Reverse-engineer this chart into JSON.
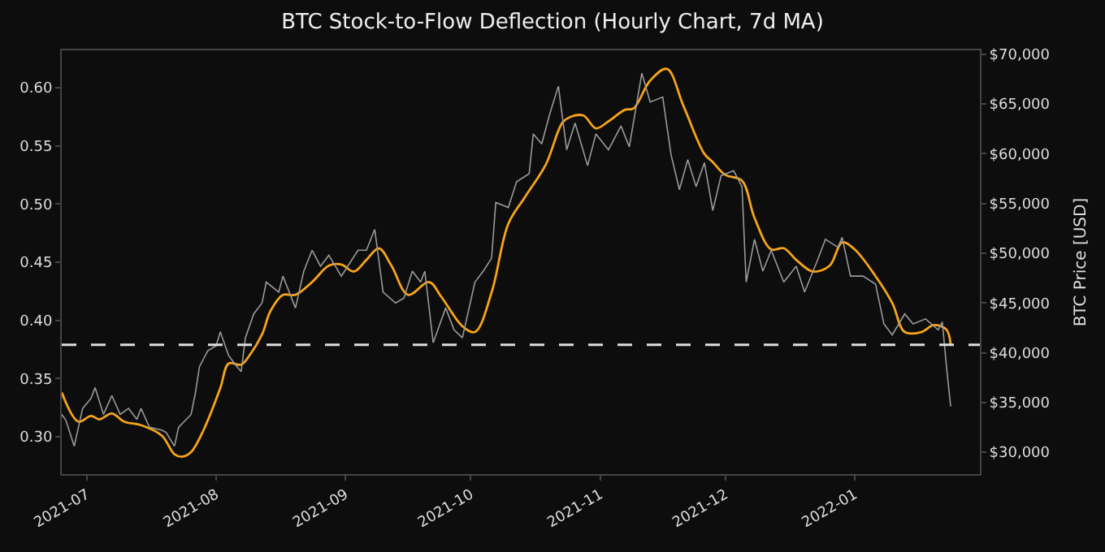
{
  "chart_data": {
    "type": "line",
    "title": "BTC Stock-to-Flow Deflection (Hourly Chart, 7d MA)",
    "y2label": "BTC Price [USD]",
    "xlim": [
      "2021-06-25",
      "2022-01-31"
    ],
    "xticks": [
      "2021-07",
      "2021-08",
      "2021-09",
      "2021-10",
      "2021-11",
      "2021-12",
      "2022-01"
    ],
    "ylim": [
      0.268,
      0.632
    ],
    "yticks": [
      {
        "value": 0.3,
        "label": "0.30"
      },
      0.35,
      {
        "value": 0.4,
        "label": "0.40"
      },
      0.45,
      {
        "value": 0.5,
        "label": "0.50"
      },
      0.55,
      {
        "value": 0.6,
        "label": "0.60"
      }
    ],
    "y2lim": [
      27800,
      70400
    ],
    "y2ticks": [
      {
        "value": 30000,
        "label": "$30,000"
      },
      {
        "value": 35000,
        "label": "$35,000"
      },
      {
        "value": 40000,
        "label": "$40,000"
      },
      {
        "value": 45000,
        "label": "$45,000"
      },
      {
        "value": 50000,
        "label": "$50,000"
      },
      {
        "value": 55000,
        "label": "$55,000"
      },
      {
        "value": 60000,
        "label": "$60,000"
      },
      {
        "value": 65000,
        "label": "$65,000"
      },
      {
        "value": 70000,
        "label": "$70,000"
      }
    ],
    "ref_lines": [
      {
        "axis": "y",
        "value": 0.379,
        "color": "#dddddd",
        "line_style": "dashed"
      }
    ],
    "series": [
      {
        "color": "#9a9a9a",
        "axis": "y2",
        "x": [
          "2021-06-25",
          "2021-06-26",
          "2021-06-28",
          "2021-06-30",
          "2021-07-02",
          "2021-07-03",
          "2021-07-05",
          "2021-07-07",
          "2021-07-09",
          "2021-07-11",
          "2021-07-13",
          "2021-07-14",
          "2021-07-16",
          "2021-07-19",
          "2021-07-20",
          "2021-07-22",
          "2021-07-23",
          "2021-07-26",
          "2021-07-27",
          "2021-07-28",
          "2021-07-30",
          "2021-08-01",
          "2021-08-02",
          "2021-08-04",
          "2021-08-06",
          "2021-08-07",
          "2021-08-08",
          "2021-08-10",
          "2021-08-12",
          "2021-08-13",
          "2021-08-16",
          "2021-08-17",
          "2021-08-20",
          "2021-08-22",
          "2021-08-24",
          "2021-08-26",
          "2021-08-28",
          "2021-08-31",
          "2021-09-02",
          "2021-09-04",
          "2021-09-06",
          "2021-09-08",
          "2021-09-10",
          "2021-09-13",
          "2021-09-15",
          "2021-09-17",
          "2021-09-19",
          "2021-09-20",
          "2021-09-22",
          "2021-09-25",
          "2021-09-27",
          "2021-09-29",
          "2021-10-02",
          "2021-10-04",
          "2021-10-06",
          "2021-10-07",
          "2021-10-10",
          "2021-10-12",
          "2021-10-15",
          "2021-10-16",
          "2021-10-18",
          "2021-10-20",
          "2021-10-22",
          "2021-10-24",
          "2021-10-26",
          "2021-10-29",
          "2021-10-31",
          "2021-11-03",
          "2021-11-06",
          "2021-11-08",
          "2021-11-11",
          "2021-11-13",
          "2021-11-16",
          "2021-11-18",
          "2021-11-20",
          "2021-11-22",
          "2021-11-24",
          "2021-11-26",
          "2021-11-28",
          "2021-11-30",
          "2021-12-03",
          "2021-12-05",
          "2021-12-06",
          "2021-12-08",
          "2021-12-10",
          "2021-12-12",
          "2021-12-15",
          "2021-12-18",
          "2021-12-20",
          "2021-12-23",
          "2021-12-25",
          "2021-12-28",
          "2021-12-29",
          "2021-12-31",
          "2022-01-03",
          "2022-01-06",
          "2022-01-08",
          "2022-01-10",
          "2022-01-13",
          "2022-01-15",
          "2022-01-18",
          "2022-01-21",
          "2022-01-22",
          "2022-01-23",
          "2022-01-24"
        ],
        "values": [
          33800,
          33200,
          30600,
          34400,
          35400,
          36500,
          33800,
          35700,
          33800,
          34400,
          33300,
          34400,
          32500,
          32200,
          32000,
          30600,
          32500,
          33800,
          35900,
          38600,
          40200,
          40700,
          42100,
          39700,
          38600,
          38100,
          41500,
          43900,
          45000,
          47100,
          46100,
          47700,
          44500,
          48200,
          50300,
          48700,
          49800,
          47700,
          49000,
          50300,
          50300,
          52400,
          46100,
          45000,
          45500,
          48200,
          47100,
          48200,
          41000,
          44500,
          42300,
          41500,
          47100,
          48200,
          49500,
          55100,
          54600,
          57200,
          58000,
          62000,
          61000,
          64100,
          66800,
          60400,
          63100,
          58800,
          62000,
          60400,
          62800,
          60700,
          68100,
          65200,
          65700,
          59900,
          56400,
          59400,
          56700,
          59100,
          54300,
          57800,
          58300,
          56700,
          47100,
          51400,
          48200,
          50300,
          47100,
          48700,
          46100,
          49200,
          51400,
          50600,
          51600,
          47700,
          47700,
          46900,
          42900,
          41800,
          43900,
          42900,
          43400,
          42300,
          43100,
          38600,
          34600
        ]
      },
      {
        "color": "#f7a418",
        "axis": "y",
        "x": [
          "2021-06-25",
          "2021-06-29",
          "2021-07-02",
          "2021-07-04",
          "2021-07-07",
          "2021-07-10",
          "2021-07-14",
          "2021-07-19",
          "2021-07-22",
          "2021-07-24",
          "2021-07-26",
          "2021-07-29",
          "2021-08-02",
          "2021-08-04",
          "2021-08-07",
          "2021-08-09",
          "2021-08-12",
          "2021-08-14",
          "2021-08-17",
          "2021-08-20",
          "2021-08-24",
          "2021-08-28",
          "2021-08-31",
          "2021-09-03",
          "2021-09-06",
          "2021-09-09",
          "2021-09-12",
          "2021-09-16",
          "2021-09-21",
          "2021-09-24",
          "2021-09-29",
          "2021-10-02",
          "2021-10-06",
          "2021-10-10",
          "2021-10-14",
          "2021-10-19",
          "2021-10-23",
          "2021-10-25",
          "2021-10-28",
          "2021-10-31",
          "2021-11-03",
          "2021-11-07",
          "2021-11-09",
          "2021-11-13",
          "2021-11-17",
          "2021-11-21",
          "2021-11-26",
          "2021-11-28",
          "2021-12-01",
          "2021-12-05",
          "2021-12-08",
          "2021-12-12",
          "2021-12-15",
          "2021-12-18",
          "2021-12-22",
          "2021-12-26",
          "2021-12-29",
          "2022-01-01",
          "2022-01-06",
          "2022-01-10",
          "2022-01-13",
          "2022-01-17",
          "2022-01-20",
          "2022-01-23",
          "2022-01-24"
        ],
        "values": [
          0.338,
          0.313,
          0.318,
          0.315,
          0.32,
          0.313,
          0.31,
          0.301,
          0.285,
          0.283,
          0.287,
          0.306,
          0.342,
          0.363,
          0.362,
          0.37,
          0.388,
          0.408,
          0.422,
          0.422,
          0.433,
          0.447,
          0.448,
          0.442,
          0.452,
          0.462,
          0.447,
          0.422,
          0.433,
          0.42,
          0.395,
          0.39,
          0.424,
          0.483,
          0.506,
          0.534,
          0.57,
          0.575,
          0.576,
          0.565,
          0.571,
          0.581,
          0.582,
          0.606,
          0.616,
          0.584,
          0.543,
          0.536,
          0.525,
          0.52,
          0.488,
          0.461,
          0.462,
          0.452,
          0.442,
          0.447,
          0.467,
          0.461,
          0.438,
          0.415,
          0.39,
          0.39,
          0.396,
          0.392,
          0.379
        ]
      }
    ]
  }
}
